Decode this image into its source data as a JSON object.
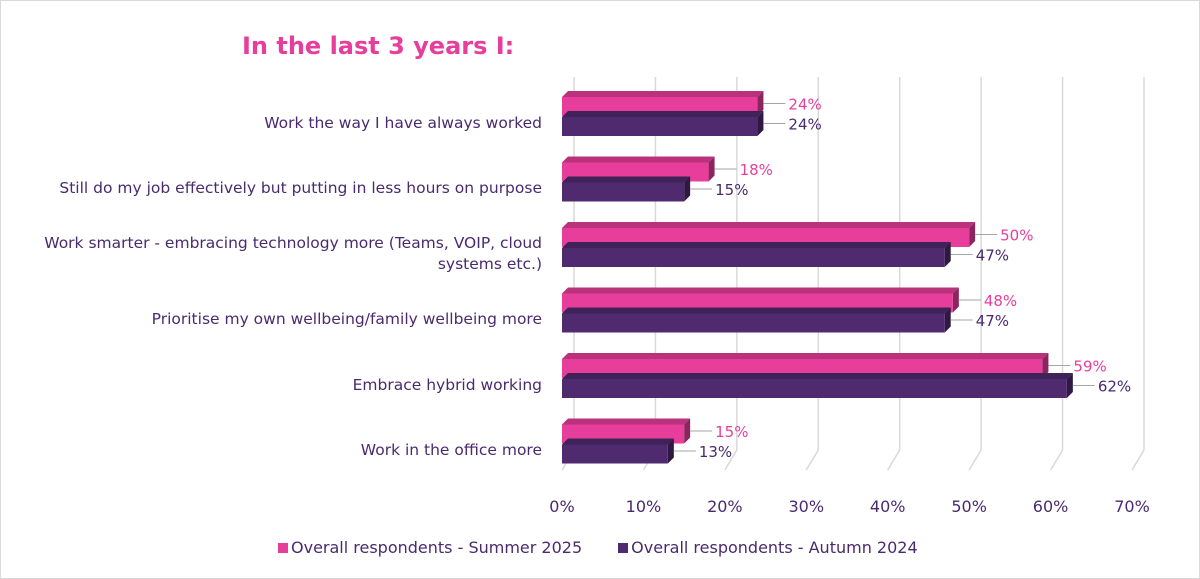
{
  "chart_data": {
    "type": "bar",
    "orientation": "horizontal",
    "title": "In the last 3 years I:",
    "categories": [
      "Work the way I have always worked",
      "Still do my job effectively but putting in less hours on purpose",
      "Work smarter - embracing technology more (Teams, VOIP, cloud systems etc.)",
      "Prioritise my own wellbeing/family wellbeing more",
      "Embrace hybrid working",
      "Work in the office more"
    ],
    "series": [
      {
        "name": "Overall respondents - Summer 2025",
        "color": "#e83e9b",
        "values": [
          24,
          18,
          50,
          48,
          59,
          15
        ],
        "labels": [
          "24%",
          "18%",
          "50%",
          "48%",
          "59%",
          "15%"
        ]
      },
      {
        "name": "Overall respondents - Autumn 2024",
        "color": "#4f2a6e",
        "values": [
          24,
          15,
          47,
          47,
          62,
          13
        ],
        "labels": [
          "24%",
          "15%",
          "47%",
          "47%",
          "62%",
          "13%"
        ]
      }
    ],
    "xlim": [
      0,
      70
    ],
    "x_ticks": [
      "0%",
      "10%",
      "20%",
      "30%",
      "40%",
      "50%",
      "60%",
      "70%"
    ],
    "grid": true,
    "legend_position": "bottom",
    "three_d": true
  }
}
